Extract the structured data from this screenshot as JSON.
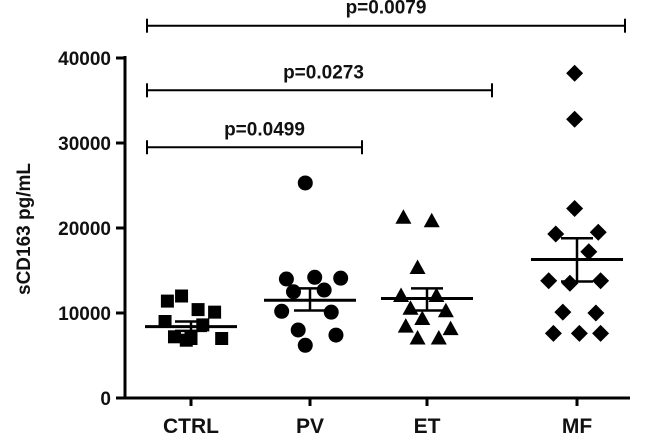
{
  "chart_data": {
    "type": "scatter",
    "ylabel": "sCD163 pg/mL",
    "ylim": [
      0,
      40000
    ],
    "yticks": [
      {
        "value": 0,
        "label": "0"
      },
      {
        "value": 10000,
        "label": "10000"
      },
      {
        "value": 20000,
        "label": "20000"
      },
      {
        "value": 30000,
        "label": "30000"
      },
      {
        "value": 40000,
        "label": "40000"
      }
    ],
    "categories": [
      "CTRL",
      "PV",
      "ET",
      "MF"
    ],
    "groups": [
      {
        "category": "CTRL",
        "marker": "square",
        "mean": 8400,
        "sem_low": 7900,
        "sem_high": 9000,
        "points": [
          {
            "offset": -0.08,
            "y": 12000
          },
          {
            "offset": -0.2,
            "y": 11400
          },
          {
            "offset": 0.06,
            "y": 10400
          },
          {
            "offset": 0.2,
            "y": 10100
          },
          {
            "offset": -0.22,
            "y": 9000
          },
          {
            "offset": 0.1,
            "y": 8600
          },
          {
            "offset": -0.14,
            "y": 7200
          },
          {
            "offset": 0.26,
            "y": 7000
          },
          {
            "offset": 0.0,
            "y": 7000
          },
          {
            "offset": -0.04,
            "y": 6800
          }
        ]
      },
      {
        "category": "PV",
        "marker": "circle",
        "mean": 11500,
        "sem_low": 10300,
        "sem_high": 12900,
        "points": [
          {
            "offset": -0.04,
            "y": 25300
          },
          {
            "offset": -0.2,
            "y": 14000
          },
          {
            "offset": 0.04,
            "y": 14200
          },
          {
            "offset": 0.26,
            "y": 14100
          },
          {
            "offset": -0.14,
            "y": 12500
          },
          {
            "offset": 0.12,
            "y": 12700
          },
          {
            "offset": -0.24,
            "y": 10200
          },
          {
            "offset": 0.18,
            "y": 10100
          },
          {
            "offset": -0.1,
            "y": 8000
          },
          {
            "offset": 0.22,
            "y": 7400
          },
          {
            "offset": -0.04,
            "y": 6200
          }
        ]
      },
      {
        "category": "ET",
        "marker": "triangle",
        "mean": 11700,
        "sem_low": 10300,
        "sem_high": 12900,
        "points": [
          {
            "offset": -0.2,
            "y": 21200
          },
          {
            "offset": 0.04,
            "y": 20800
          },
          {
            "offset": -0.08,
            "y": 15300
          },
          {
            "offset": -0.22,
            "y": 12000
          },
          {
            "offset": 0.08,
            "y": 12000
          },
          {
            "offset": -0.14,
            "y": 10500
          },
          {
            "offset": 0.16,
            "y": 10200
          },
          {
            "offset": -0.04,
            "y": 9300
          },
          {
            "offset": -0.18,
            "y": 8400
          },
          {
            "offset": 0.2,
            "y": 8100
          },
          {
            "offset": -0.08,
            "y": 7000
          },
          {
            "offset": 0.1,
            "y": 7000
          }
        ]
      },
      {
        "category": "MF",
        "marker": "diamond",
        "mean": 16300,
        "sem_low": 13700,
        "sem_high": 18800,
        "points": [
          {
            "offset": -0.02,
            "y": 38200
          },
          {
            "offset": -0.02,
            "y": 32800
          },
          {
            "offset": -0.02,
            "y": 22300
          },
          {
            "offset": 0.18,
            "y": 19500
          },
          {
            "offset": -0.18,
            "y": 19300
          },
          {
            "offset": 0.1,
            "y": 17200
          },
          {
            "offset": -0.24,
            "y": 13800
          },
          {
            "offset": -0.06,
            "y": 13500
          },
          {
            "offset": 0.2,
            "y": 13800
          },
          {
            "offset": -0.12,
            "y": 10100
          },
          {
            "offset": 0.16,
            "y": 10000
          },
          {
            "offset": -0.2,
            "y": 7600
          },
          {
            "offset": 0.02,
            "y": 7600
          },
          {
            "offset": 0.2,
            "y": 7600
          }
        ]
      }
    ],
    "comparisons": [
      {
        "from": "CTRL",
        "to": "PV",
        "label": "p=0.0499",
        "y": 29500
      },
      {
        "from": "CTRL",
        "to": "ET",
        "label": "p=0.0273",
        "y": 36200
      },
      {
        "from": "CTRL",
        "to": "MF",
        "label": "p=0.0079",
        "y": 43800
      }
    ],
    "grid": false,
    "colors": {
      "marker": "#000000",
      "line": "#000000",
      "text": "#111111"
    }
  }
}
